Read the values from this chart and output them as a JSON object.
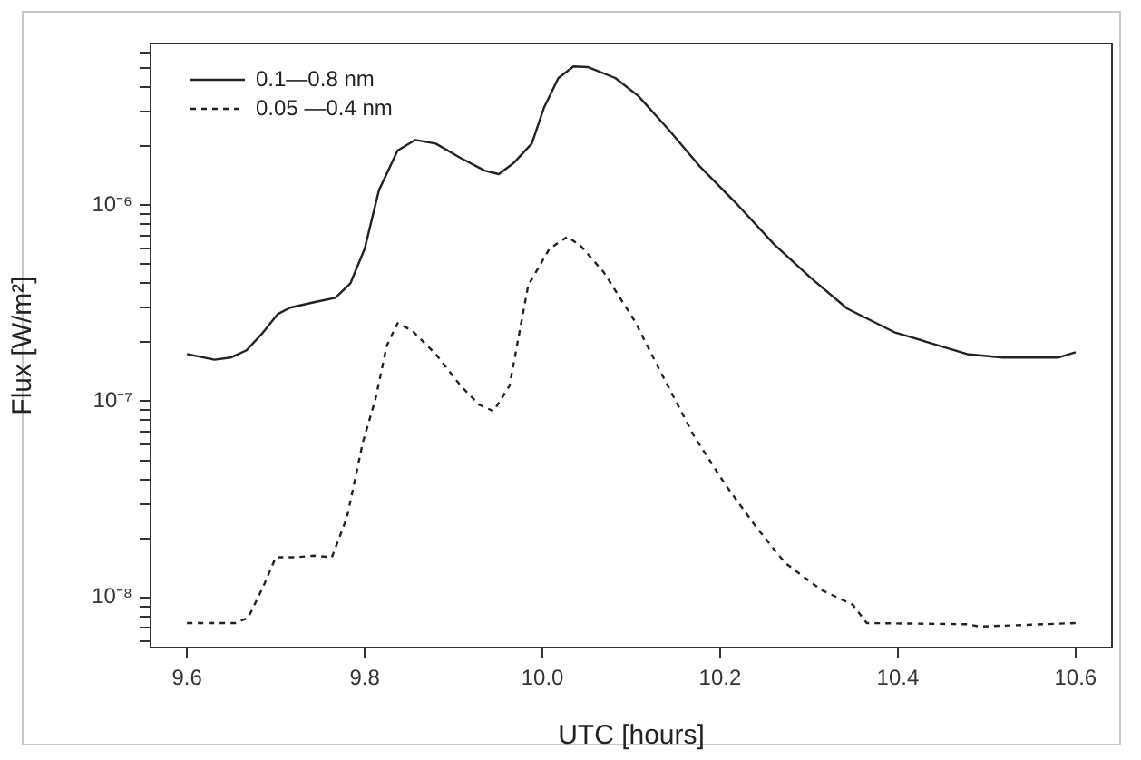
{
  "chart_data": {
    "type": "line",
    "xlabel": "UTC [hours]",
    "ylabel": "Flux [W/m²]",
    "log": "y",
    "grid": false,
    "legend": "top left",
    "marker": "none",
    "xlim": [
      9.559,
      10.641
    ],
    "xticks": [
      {
        "value": 9.6,
        "label": "9.6"
      },
      {
        "value": 9.8,
        "label": "9.8"
      },
      {
        "value": 10.0,
        "label": "10.0"
      },
      {
        "value": 10.2,
        "label": "10.2"
      },
      {
        "value": 10.4,
        "label": "10.4"
      },
      {
        "value": 10.6,
        "label": "10.6"
      }
    ],
    "ylim": [
      5.55e-09,
      6.67e-06
    ],
    "yticks": [
      {
        "value": 6e-09,
        "label": null
      },
      {
        "value": 7e-09,
        "label": null
      },
      {
        "value": 8e-09,
        "label": null
      },
      {
        "value": 9e-09,
        "label": null
      },
      {
        "value": 1e-08,
        "label": "10⁻⁸"
      },
      {
        "value": 2e-08,
        "label": null
      },
      {
        "value": 3e-08,
        "label": null
      },
      {
        "value": 4e-08,
        "label": null
      },
      {
        "value": 5e-08,
        "label": null
      },
      {
        "value": 6e-08,
        "label": null
      },
      {
        "value": 7e-08,
        "label": null
      },
      {
        "value": 8e-08,
        "label": null
      },
      {
        "value": 9e-08,
        "label": null
      },
      {
        "value": 1e-07,
        "label": "10⁻⁷"
      },
      {
        "value": 2e-07,
        "label": null
      },
      {
        "value": 3e-07,
        "label": null
      },
      {
        "value": 4e-07,
        "label": null
      },
      {
        "value": 5e-07,
        "label": null
      },
      {
        "value": 6e-07,
        "label": null
      },
      {
        "value": 7e-07,
        "label": null
      },
      {
        "value": 8e-07,
        "label": null
      },
      {
        "value": 9e-07,
        "label": null
      },
      {
        "value": 1e-06,
        "label": "10⁻⁶"
      },
      {
        "value": 2e-06,
        "label": null
      },
      {
        "value": 3e-06,
        "label": null
      },
      {
        "value": 4e-06,
        "label": null
      },
      {
        "value": 5e-06,
        "label": null
      },
      {
        "value": 6e-06,
        "label": null
      }
    ],
    "series": [
      {
        "name": "0.1—0.8 nm",
        "color": "#222222",
        "line_style": "solid",
        "x": [
          9.6,
          9.631,
          9.649,
          9.667,
          9.684,
          9.702,
          9.716,
          9.743,
          9.767,
          9.784,
          9.8,
          9.816,
          9.837,
          9.857,
          9.88,
          9.908,
          9.935,
          9.951,
          9.967,
          9.988,
          10.002,
          10.018,
          10.035,
          10.051,
          10.082,
          10.108,
          10.143,
          10.178,
          10.22,
          10.261,
          10.302,
          10.343,
          10.396,
          10.437,
          10.478,
          10.518,
          10.58,
          10.6
        ],
        "values": [
          1.74e-07,
          1.63e-07,
          1.67e-07,
          1.82e-07,
          2.2e-07,
          2.78e-07,
          3e-07,
          3.2e-07,
          3.37e-07,
          4e-07,
          6e-07,
          1.19e-06,
          1.9e-06,
          2.15e-06,
          2.06e-06,
          1.74e-06,
          1.5e-06,
          1.44e-06,
          1.63e-06,
          2.06e-06,
          3.16e-06,
          4.45e-06,
          5.1e-06,
          5.06e-06,
          4.45e-06,
          3.6e-06,
          2.4e-06,
          1.56e-06,
          1e-06,
          6.3e-07,
          4.26e-07,
          2.97e-07,
          2.25e-07,
          1.98e-07,
          1.74e-07,
          1.67e-07,
          1.67e-07,
          1.78e-07
        ]
      },
      {
        "name": "0.05 —0.4 nm",
        "color": "#222222",
        "line_style": "dashed",
        "x": [
          9.6,
          9.655,
          9.669,
          9.686,
          9.7,
          9.722,
          9.743,
          9.763,
          9.78,
          9.798,
          9.812,
          9.825,
          9.837,
          9.853,
          9.88,
          9.908,
          9.929,
          9.945,
          9.963,
          9.984,
          10.008,
          10.028,
          10.043,
          10.069,
          10.104,
          10.131,
          10.171,
          10.206,
          10.24,
          10.273,
          10.314,
          10.349,
          10.365,
          10.478,
          10.492,
          10.6
        ],
        "values": [
          7.4e-09,
          7.4e-09,
          7.9e-09,
          1.14e-08,
          1.6e-08,
          1.6e-08,
          1.63e-08,
          1.6e-08,
          2.55e-08,
          6.2e-08,
          1.02e-07,
          1.93e-07,
          2.5e-07,
          2.3e-07,
          1.74e-07,
          1.2e-07,
          9.6e-08,
          8.9e-08,
          1.2e-07,
          3.9e-07,
          6e-07,
          6.9e-07,
          6.2e-07,
          4.55e-07,
          2.56e-07,
          1.47e-07,
          6.6e-08,
          3.75e-08,
          2.3e-08,
          1.5e-08,
          1.09e-08,
          9.2e-09,
          7.4e-09,
          7.3e-09,
          7.1e-09,
          7.4e-09
        ]
      }
    ]
  }
}
